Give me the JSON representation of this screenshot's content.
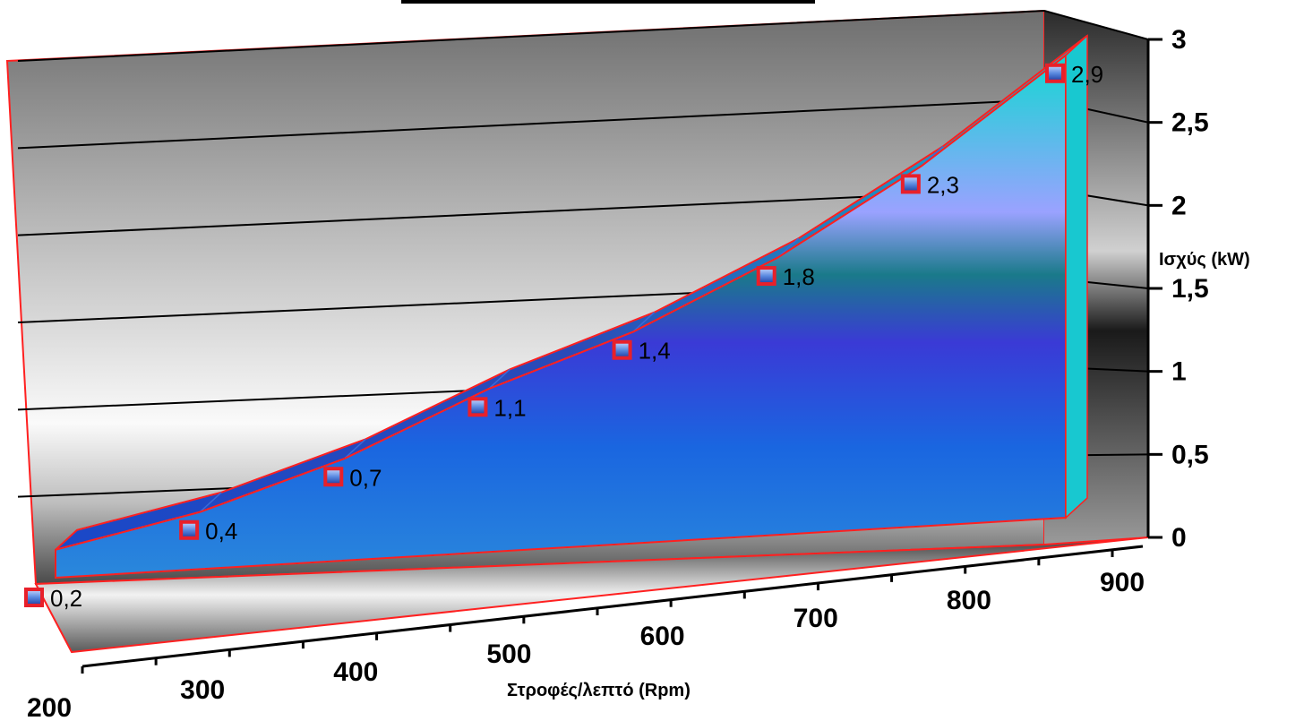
{
  "chart_data": {
    "type": "area",
    "title": "",
    "xlabel": "Στροφές/λεπτό  (Rpm)",
    "ylabel": "Ισχύς (kW)",
    "x_ticks": [
      "200",
      "300",
      "400",
      "500",
      "600",
      "700",
      "800",
      "900"
    ],
    "y_ticks": [
      "0",
      "0,5",
      "1",
      "1,5",
      "2",
      "2,5",
      "3"
    ],
    "ylim": [
      0,
      3
    ],
    "xlim": [
      200,
      900
    ],
    "series": [
      {
        "points": [
          {
            "x": 200,
            "y": 0.2,
            "label": "0,2"
          },
          {
            "x": 300,
            "y": 0.4,
            "label": "0,4"
          },
          {
            "x": 400,
            "y": 0.7,
            "label": "0,7"
          },
          {
            "x": 500,
            "y": 1.1,
            "label": "1,1"
          },
          {
            "x": 600,
            "y": 1.4,
            "label": "1,4"
          },
          {
            "x": 700,
            "y": 1.8,
            "label": "1,8"
          },
          {
            "x": 800,
            "y": 2.3,
            "label": "2,3"
          },
          {
            "x": 900,
            "y": 2.9,
            "label": "2,9"
          }
        ]
      }
    ],
    "colors": {
      "edge": "#ff2020",
      "marker": "#e8202a",
      "fill_top": "#12d8d2",
      "fill_bottom": "#1a5ad8"
    },
    "grid": true,
    "style": "3d"
  }
}
